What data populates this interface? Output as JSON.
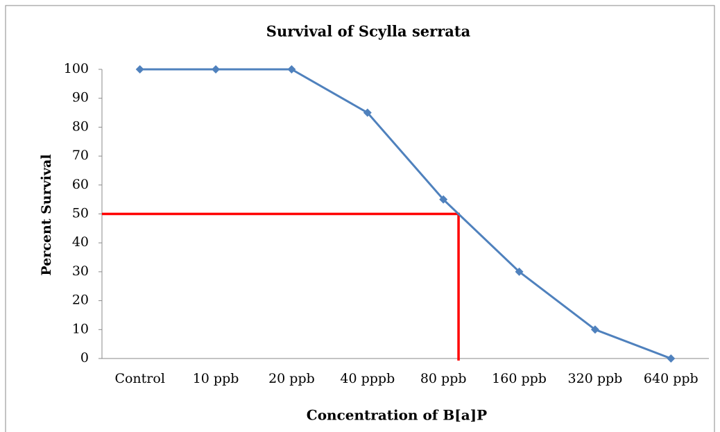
{
  "chart_data": {
    "type": "line",
    "title": "Survival of Scylla serrata",
    "x_label": "Concentration  of  B[a]P",
    "y_label": "Percent  Survival",
    "categories": [
      "Control",
      "10 ppb",
      "20 ppb",
      "40 pppb",
      "80 ppb",
      "160 ppb",
      "320 ppb",
      "640 ppb"
    ],
    "series": [
      {
        "name": "Survival",
        "color": "#4f81bd",
        "values": [
          100,
          100,
          100,
          85,
          55,
          30,
          10,
          0
        ]
      }
    ],
    "ylim": [
      0,
      100
    ],
    "yticks": [
      0,
      10,
      20,
      30,
      40,
      50,
      60,
      70,
      80,
      90,
      100
    ],
    "grid": false,
    "reference": {
      "y": 50,
      "x_index": 4.2,
      "color": "#ff0000"
    }
  }
}
